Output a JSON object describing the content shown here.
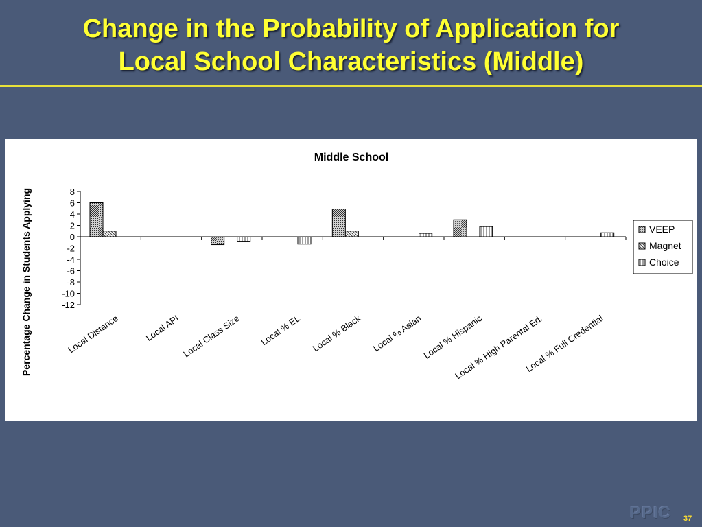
{
  "slide": {
    "title_line1": "Change in the Probability of Application for",
    "title_line2": "Local School Characteristics (Middle)",
    "logo_text": "PPIC",
    "page_number": "37"
  },
  "chart_data": {
    "type": "bar",
    "title": "Middle School",
    "ylabel": "Percentage Change in Students Applying",
    "xlabel": "",
    "ylim": [
      -12,
      8
    ],
    "yticks": [
      8,
      6,
      4,
      2,
      0,
      -2,
      -4,
      -6,
      -8,
      -10,
      -12
    ],
    "legend_position": "right",
    "grid": false,
    "categories": [
      "Local Distance",
      "Local API",
      "Local Class Size",
      "Local % EL",
      "Local % Black",
      "Local % Asian",
      "Local % Hispanic",
      "Local % High Parental Ed.",
      "Local % Full Credential"
    ],
    "series": [
      {
        "name": "VEEP",
        "values": [
          6.0,
          0,
          -1.4,
          0,
          4.9,
          0,
          3.0,
          0,
          0
        ]
      },
      {
        "name": "Magnet",
        "values": [
          1.0,
          0,
          0,
          0,
          1.0,
          0,
          0,
          0,
          0
        ]
      },
      {
        "name": "Choice",
        "values": [
          0,
          0,
          -0.8,
          -1.3,
          0,
          0.6,
          1.8,
          0,
          0.7
        ]
      }
    ]
  }
}
